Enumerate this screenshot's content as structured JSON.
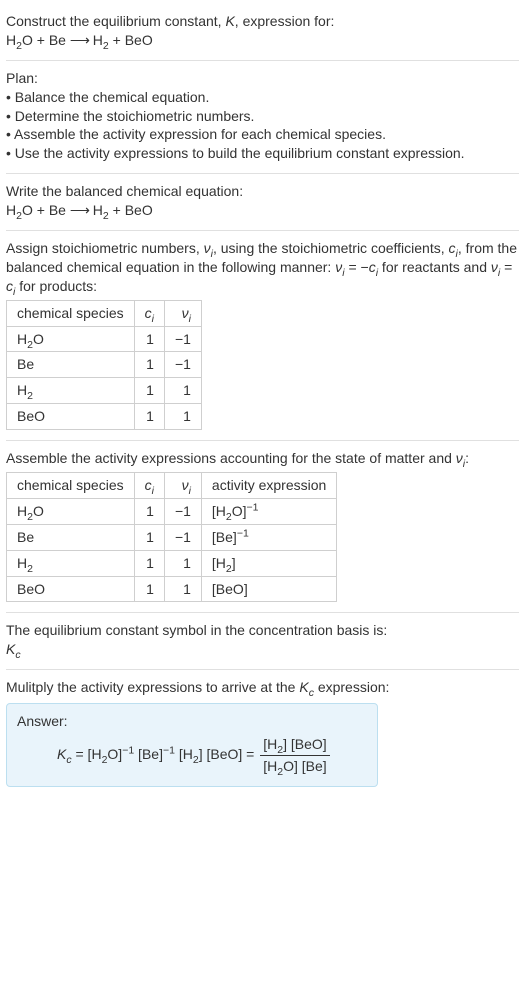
{
  "intro": {
    "line1_pre": "Construct the equilibrium constant, ",
    "K_it": "K",
    "line1_post": ", expression for:",
    "eq_lhs1": "H",
    "eq_lhs1_sub": "2",
    "eq_lhs1b": "O + Be ",
    "arrow": "⟶",
    "eq_rhs": "  H",
    "eq_rhs_sub": "2",
    "eq_rhs_b": " + BeO"
  },
  "plan": {
    "title": "Plan:",
    "b1": "• Balance the chemical equation.",
    "b2": "• Determine the stoichiometric numbers.",
    "b3": "• Assemble the activity expression for each chemical species.",
    "b4": "• Use the activity expressions to build the equilibrium constant expression."
  },
  "balanced": {
    "title": "Write the balanced chemical equation:",
    "eq_a": "H",
    "eq_a_sub": "2",
    "eq_b": "O + Be ",
    "arrow": "⟶",
    "eq_c": "  H",
    "eq_c_sub": "2",
    "eq_d": " + BeO"
  },
  "assign": {
    "line_a": "Assign stoichiometric numbers, ",
    "v_it": "ν",
    "i_sub": "i",
    "line_b": ", using the stoichiometric coefficients, ",
    "c_it": "c",
    "line_c": ", from the balanced chemical equation in the following manner: ",
    "eq1_l": "ν",
    "eq1_mid": " = −",
    "line_d": " for reactants and ",
    "eq2_mid": " = ",
    "line_e": " for products:",
    "table": {
      "h1": "chemical species",
      "h2_a": "c",
      "h2_b": "i",
      "h3_a": "ν",
      "h3_b": "i",
      "rows": [
        {
          "sp_a": "H",
          "sp_sub": "2",
          "sp_b": "O",
          "c": "1",
          "v": "−1"
        },
        {
          "sp_a": "Be",
          "sp_sub": "",
          "sp_b": "",
          "c": "1",
          "v": "−1"
        },
        {
          "sp_a": "H",
          "sp_sub": "2",
          "sp_b": "",
          "c": "1",
          "v": "1"
        },
        {
          "sp_a": "BeO",
          "sp_sub": "",
          "sp_b": "",
          "c": "1",
          "v": "1"
        }
      ]
    }
  },
  "activity": {
    "line_a": "Assemble the activity expressions accounting for the state of matter and ",
    "v_it": "ν",
    "i_sub": "i",
    "line_b": ":",
    "table": {
      "h1": "chemical species",
      "h2_a": "c",
      "h2_b": "i",
      "h3_a": "ν",
      "h3_b": "i",
      "h4": "activity expression",
      "rows": [
        {
          "sp_a": "H",
          "sp_sub": "2",
          "sp_b": "O",
          "c": "1",
          "v": "−1",
          "ae_pre": "[H",
          "ae_sub": "2",
          "ae_mid": "O]",
          "ae_sup": "−1",
          "ae_post": ""
        },
        {
          "sp_a": "Be",
          "sp_sub": "",
          "sp_b": "",
          "c": "1",
          "v": "−1",
          "ae_pre": "[Be]",
          "ae_sub": "",
          "ae_mid": "",
          "ae_sup": "−1",
          "ae_post": ""
        },
        {
          "sp_a": "H",
          "sp_sub": "2",
          "sp_b": "",
          "c": "1",
          "v": "1",
          "ae_pre": "[H",
          "ae_sub": "2",
          "ae_mid": "]",
          "ae_sup": "",
          "ae_post": ""
        },
        {
          "sp_a": "BeO",
          "sp_sub": "",
          "sp_b": "",
          "c": "1",
          "v": "1",
          "ae_pre": "[BeO]",
          "ae_sub": "",
          "ae_mid": "",
          "ae_sup": "",
          "ae_post": ""
        }
      ]
    }
  },
  "kcymbol": {
    "line": "The equilibrium constant symbol in the concentration basis is:",
    "K": "K",
    "c": "c"
  },
  "mult": {
    "line_a": "Mulitply the activity expressions to arrive at the ",
    "K": "K",
    "c": "c",
    "line_b": " expression:"
  },
  "answer": {
    "label": "Answer:",
    "K": "K",
    "c": "c",
    "eq_a": " = [H",
    "eq_a_sub": "2",
    "eq_b": "O]",
    "eq_b_sup": "−1",
    "eq_c": " [Be]",
    "eq_c_sup": "−1",
    "eq_d": " [H",
    "eq_d_sub": "2",
    "eq_e": "] [BeO] = ",
    "num_a": "[H",
    "num_sub": "2",
    "num_b": "] [BeO]",
    "den_a": "[H",
    "den_sub": "2",
    "den_b": "O] [Be]"
  }
}
